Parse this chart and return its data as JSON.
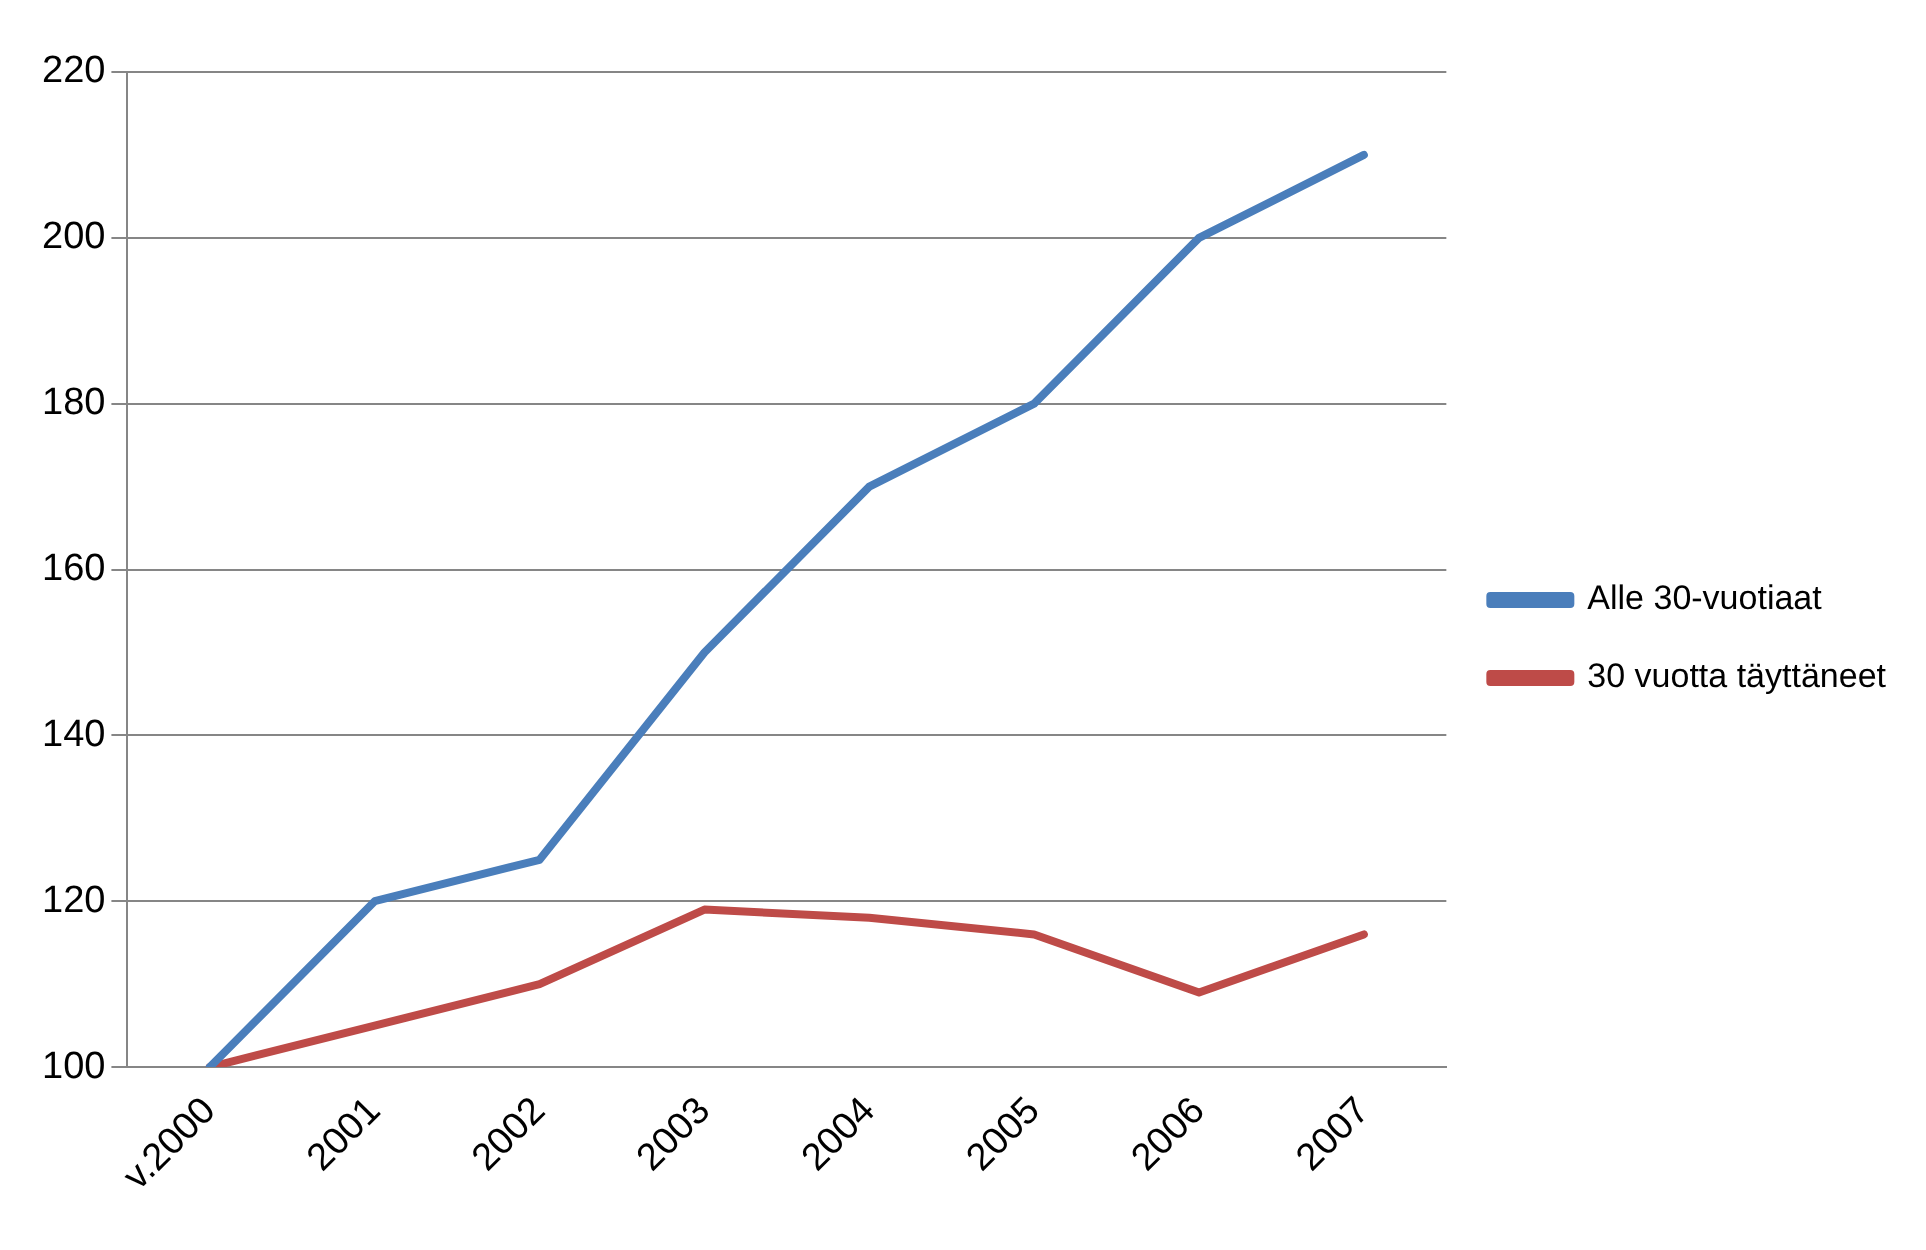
{
  "chart_data": {
    "type": "line",
    "categories": [
      "v.2000",
      "2001",
      "2002",
      "2003",
      "2004",
      "2005",
      "2006",
      "2007"
    ],
    "series": [
      {
        "name": "Alle 30-vuotiaat",
        "color": "#4a7ebb",
        "values": [
          100,
          120,
          125,
          150,
          170,
          180,
          200,
          210
        ]
      },
      {
        "name": "30 vuotta täyttäneet",
        "color": "#be4b48",
        "values": [
          100,
          105,
          110,
          119,
          118,
          116,
          109,
          116
        ]
      }
    ],
    "ylim": [
      100,
      220
    ],
    "yticks": [
      100,
      120,
      140,
      160,
      180,
      200,
      220
    ],
    "grid": "y",
    "legend": "right",
    "marker": "none",
    "line_style": "solid"
  }
}
